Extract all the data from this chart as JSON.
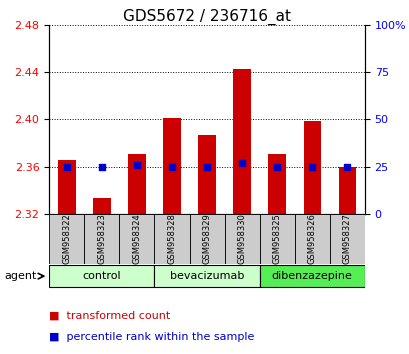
{
  "title": "GDS5672 / 236716_at",
  "samples": [
    "GSM958322",
    "GSM958323",
    "GSM958324",
    "GSM958328",
    "GSM958329",
    "GSM958330",
    "GSM958325",
    "GSM958326",
    "GSM958327"
  ],
  "transformed_counts": [
    2.366,
    2.334,
    2.371,
    2.401,
    2.387,
    2.443,
    2.371,
    2.399,
    2.36
  ],
  "percentile_ranks": [
    25,
    25,
    26,
    25,
    25,
    27,
    25,
    25,
    25
  ],
  "groups": [
    {
      "label": "control",
      "indices": [
        0,
        1,
        2
      ],
      "color": "#ccffcc"
    },
    {
      "label": "bevacizumab",
      "indices": [
        3,
        4,
        5
      ],
      "color": "#ccffcc"
    },
    {
      "label": "dibenzazepine",
      "indices": [
        6,
        7,
        8
      ],
      "color": "#55ee55"
    }
  ],
  "ylim_left": [
    2.32,
    2.48
  ],
  "ylim_right": [
    0,
    100
  ],
  "yticks_left": [
    2.32,
    2.36,
    2.4,
    2.44,
    2.48
  ],
  "yticks_right": [
    0,
    25,
    50,
    75,
    100
  ],
  "ytick_labels_right": [
    "0",
    "25",
    "50",
    "75",
    "100%"
  ],
  "bar_bottom": 2.32,
  "bar_color": "#cc0000",
  "dot_color": "#0000cc",
  "sample_box_color": "#cccccc",
  "agent_label": "agent",
  "title_fontsize": 11,
  "tick_fontsize": 8,
  "sample_fontsize": 6,
  "group_fontsize": 8,
  "legend_fontsize": 8
}
